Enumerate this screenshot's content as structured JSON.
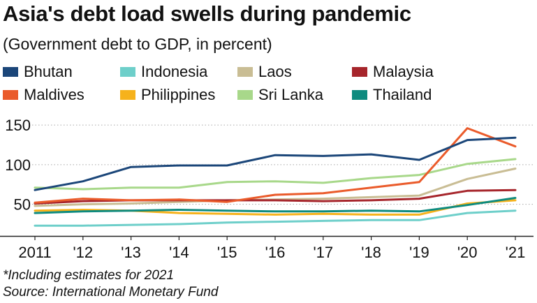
{
  "title": "Asia's debt load swells during pandemic",
  "subtitle": "(Government debt to GDP, in percent)",
  "footnotes": {
    "note": "*Including estimates for 2021",
    "source": "Source: International Monetary Fund"
  },
  "chart_data": {
    "type": "line",
    "x": [
      "2011",
      "'12",
      "'13",
      "'14",
      "'15",
      "'16",
      "'17",
      "'18",
      "'19",
      "'20",
      "'21"
    ],
    "ylim": [
      10,
      158
    ],
    "yticks": [
      50,
      100,
      150
    ],
    "grid": "horizontal dotted",
    "legend_position": "top",
    "series": [
      {
        "name": "Bhutan",
        "color": "#1b4679",
        "values": [
          68,
          79,
          97,
          99,
          99,
          112,
          111,
          113,
          106,
          131,
          134
        ]
      },
      {
        "name": "Indonesia",
        "color": "#6ecfca",
        "values": [
          23,
          23,
          24,
          25,
          27,
          28,
          29,
          30,
          30,
          39,
          42
        ]
      },
      {
        "name": "Laos",
        "color": "#c9bd94",
        "values": [
          48,
          50,
          51,
          53,
          55,
          56,
          57,
          59,
          61,
          82,
          95
        ]
      },
      {
        "name": "Malaysia",
        "color": "#a6252b",
        "values": [
          51,
          54,
          55,
          55,
          55,
          55,
          54,
          55,
          57,
          67,
          68
        ]
      },
      {
        "name": "Maldives",
        "color": "#ea5b2b",
        "values": [
          52,
          57,
          55,
          56,
          53,
          62,
          64,
          71,
          78,
          146,
          123
        ]
      },
      {
        "name": "Philippines",
        "color": "#f6b21b",
        "values": [
          42,
          43,
          42,
          39,
          38,
          37,
          38,
          37,
          37,
          51,
          55
        ]
      },
      {
        "name": "Sri Lanka",
        "color": "#a8d88a",
        "values": [
          71,
          69,
          71,
          71,
          78,
          79,
          77,
          83,
          87,
          101,
          107
        ]
      },
      {
        "name": "Thailand",
        "color": "#0e8b7f",
        "values": [
          39,
          41,
          42,
          43,
          42,
          41,
          41,
          42,
          41,
          49,
          58
        ]
      }
    ]
  }
}
